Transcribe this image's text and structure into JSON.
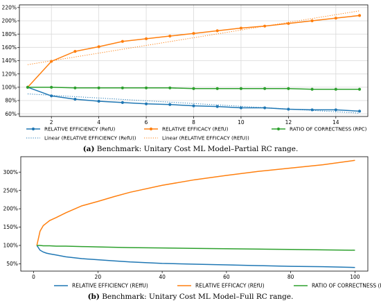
{
  "colors": {
    "efficiency": "#1f77b4",
    "efficacy": "#ff7f0e",
    "correctness": "#2ca02c",
    "grid": "#d9d9d9",
    "axis": "#000000"
  },
  "chart_data": [
    {
      "id": "a",
      "type": "line",
      "caption_label": "(a)",
      "caption_text": " Benchmark: Unitary Cost ML Model–Partial RC range.",
      "x": [
        1,
        2,
        3,
        4,
        5,
        6,
        7,
        8,
        9,
        10,
        11,
        12,
        13,
        14,
        15
      ],
      "xticks": [
        2,
        4,
        6,
        8,
        10,
        12,
        14
      ],
      "xlim": [
        0.65,
        15.35
      ],
      "yticks": [
        60,
        80,
        100,
        120,
        140,
        160,
        180,
        200,
        220
      ],
      "ylim": [
        56,
        224
      ],
      "y_suffix": "%",
      "grid": true,
      "legend_placement": "bottom",
      "series": [
        {
          "key": "efficiency",
          "name": "RELATIVE EFFICIENCY (RefU)",
          "values": [
            100,
            87,
            82,
            79,
            77,
            75,
            74,
            72,
            71,
            69,
            69,
            67,
            66,
            66,
            64
          ],
          "markers": true
        },
        {
          "key": "efficacy",
          "name": "RELATIVE EFFICACY (REfU)",
          "values": [
            100,
            139,
            154,
            161,
            169,
            173,
            177,
            181,
            185,
            189,
            192,
            196,
            200,
            204,
            208
          ],
          "markers": true
        },
        {
          "key": "correctness",
          "name": "RATIO OF CORRECTNESS (RPC)",
          "values": [
            100,
            100,
            99,
            99,
            99,
            99,
            99,
            98,
            98,
            98,
            98,
            98,
            97,
            97,
            97
          ],
          "markers": true
        }
      ],
      "trendlines": [
        {
          "key": "efficiency",
          "name": "Linear (RELATIVE EFFICIENCY (RefU))",
          "x": [
            1,
            15
          ],
          "y": [
            90,
            61
          ]
        },
        {
          "key": "efficacy",
          "name": "Linear (RELATIVE EFFICACY (REfU))",
          "x": [
            1,
            15
          ],
          "y": [
            134,
            215
          ]
        }
      ]
    },
    {
      "id": "b",
      "type": "line",
      "caption_label": "(b)",
      "caption_text": " Benchmark: Unitary Cost ML Model–Full RC range.",
      "x": [
        1,
        2,
        3,
        4,
        5,
        7,
        10,
        15,
        20,
        25,
        30,
        40,
        50,
        60,
        70,
        80,
        90,
        100
      ],
      "xticks": [
        0,
        20,
        40,
        60,
        80,
        100
      ],
      "xlim": [
        -4,
        104
      ],
      "yticks": [
        50,
        100,
        150,
        200,
        250,
        300
      ],
      "ylim": [
        30,
        342
      ],
      "y_suffix": "%",
      "grid": false,
      "legend_placement": "bottom",
      "series": [
        {
          "key": "efficiency",
          "name": "RELATIVE EFFICIENCY (REffU)",
          "values": [
            100,
            87,
            82,
            79,
            77,
            74,
            69,
            64,
            61,
            58,
            55,
            51,
            49,
            47,
            45,
            43,
            42,
            40
          ],
          "markers": false
        },
        {
          "key": "efficacy",
          "name": "RELATIVE EFFICACY (REfU)",
          "values": [
            100,
            139,
            154,
            161,
            168,
            176,
            189,
            208,
            220,
            233,
            245,
            264,
            279,
            291,
            302,
            311,
            320,
            332
          ],
          "markers": false
        },
        {
          "key": "correctness",
          "name": "RATIO OF CORRECTNESS (RPC)",
          "values": [
            100,
            100,
            99,
            99,
            99,
            98,
            98,
            97,
            96,
            95,
            94,
            93,
            92,
            91,
            90,
            89,
            88,
            87
          ],
          "markers": false
        }
      ]
    }
  ]
}
